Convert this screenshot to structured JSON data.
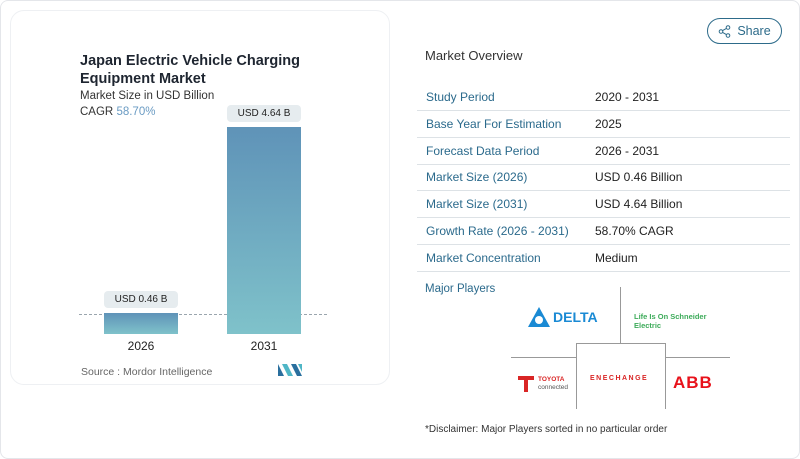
{
  "share_label": "Share",
  "chart_data": {
    "type": "bar",
    "title": "Japan Electric Vehicle Charging Equipment Market",
    "subtitle": "Market Size in USD Billion",
    "cagr_label": "CAGR",
    "cagr_value": "58.70%",
    "categories": [
      "2026",
      "2031"
    ],
    "values": [
      0.46,
      4.64
    ],
    "data_labels": [
      "USD 0.46 B",
      "USD 4.64 B"
    ],
    "source": "Source :  Mordor Intelligence",
    "colors": {
      "bar_top": "#5f93b8",
      "bar_bottom": "#7fc2ca"
    }
  },
  "overview": {
    "title": "Market Overview",
    "rows": [
      {
        "label": "Study Period",
        "value": "2020 - 2031"
      },
      {
        "label": "Base Year For Estimation",
        "value": "2025"
      },
      {
        "label": "Forecast Data Period",
        "value": "2026 - 2031"
      },
      {
        "label": "Market Size (2026)",
        "value": "USD 0.46 Billion"
      },
      {
        "label": "Market Size (2031)",
        "value": "USD 4.64 Billion"
      },
      {
        "label": "Growth Rate (2026 - 2031)",
        "value": "58.70% CAGR"
      },
      {
        "label": "Market Concentration",
        "value": "Medium"
      }
    ],
    "players_title": "Major Players",
    "players": [
      "DELTA",
      "Life Is On Schneider Electric",
      "TOYOTA connected",
      "ENECHANGE",
      "ABB"
    ],
    "disclaimer": "*Disclaimer: Major Players sorted in no particular order"
  }
}
